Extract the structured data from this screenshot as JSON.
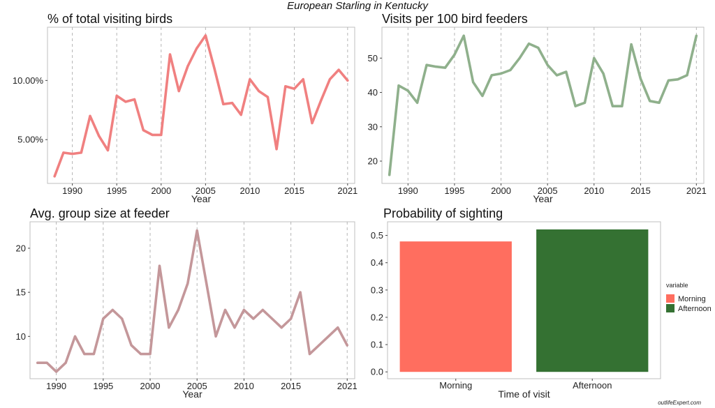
{
  "page_title": "European Starling in Kentucky",
  "watermark": "outlifeExpert.com",
  "chart_data": [
    {
      "id": "pct",
      "type": "line",
      "title": "% of total visiting birds",
      "xlabel": "Year",
      "ylabel": "",
      "color": "#f08080",
      "x": [
        1988,
        1989,
        1990,
        1991,
        1992,
        1993,
        1994,
        1995,
        1996,
        1997,
        1998,
        1999,
        2000,
        2001,
        2002,
        2003,
        2004,
        2005,
        2006,
        2007,
        2008,
        2009,
        2010,
        2011,
        2012,
        2013,
        2014,
        2015,
        2016,
        2017,
        2018,
        2019,
        2020,
        2021
      ],
      "y": [
        1.9,
        3.9,
        3.8,
        3.9,
        7.0,
        5.3,
        4.1,
        8.7,
        8.2,
        8.4,
        5.8,
        5.4,
        5.4,
        12.2,
        9.1,
        11.2,
        12.7,
        13.8,
        11.0,
        8.0,
        8.1,
        7.1,
        10.1,
        9.1,
        8.6,
        4.2,
        9.5,
        9.3,
        10.1,
        6.4,
        8.3,
        10.1,
        10.9,
        10.0
      ],
      "xlim": [
        1987.2,
        2021.8
      ],
      "ylim": [
        1.3,
        14.5
      ],
      "xticks": [
        1990,
        1995,
        2000,
        2005,
        2010,
        2015,
        2021
      ],
      "xtick_labels": [
        "1990",
        "1995",
        "2000",
        "2005",
        "2010",
        "2015",
        "2021"
      ],
      "yticks": [
        5,
        10
      ],
      "ytick_labels": [
        "5.00%",
        "10.00%"
      ],
      "grid": "vertical-dashed"
    },
    {
      "id": "visits",
      "type": "line",
      "title": "Visits per 100 bird feeders",
      "xlabel": "Year",
      "ylabel": "",
      "color": "#8fb08c",
      "x": [
        1988,
        1989,
        1990,
        1991,
        1992,
        1993,
        1994,
        1995,
        1996,
        1997,
        1998,
        1999,
        2000,
        2001,
        2002,
        2003,
        2004,
        2005,
        2006,
        2007,
        2008,
        2009,
        2010,
        2011,
        2012,
        2013,
        2014,
        2015,
        2016,
        2017,
        2018,
        2019,
        2020,
        2021
      ],
      "y": [
        16,
        42,
        40.5,
        37,
        48,
        47.5,
        47.2,
        51,
        56.5,
        43,
        39,
        45,
        45.5,
        46.5,
        50,
        54.2,
        53,
        48,
        45,
        46,
        36,
        37,
        50,
        45.5,
        36,
        36,
        54,
        44,
        37.5,
        37,
        43.5,
        43.8,
        45,
        56.5
      ],
      "xlim": [
        1987.2,
        2021.8
      ],
      "ylim": [
        13.5,
        59
      ],
      "xticks": [
        1990,
        1995,
        2000,
        2005,
        2010,
        2015,
        2021
      ],
      "xtick_labels": [
        "1990",
        "1995",
        "2000",
        "2005",
        "2010",
        "2015",
        "2021"
      ],
      "yticks": [
        20,
        30,
        40,
        50
      ],
      "ytick_labels": [
        "20",
        "30",
        "40",
        "50"
      ],
      "grid": "vertical-dashed"
    },
    {
      "id": "group",
      "type": "line",
      "title": "Avg. group size at feeder",
      "xlabel": "Year",
      "ylabel": "",
      "color": "#c4979a",
      "x": [
        1988,
        1989,
        1990,
        1991,
        1992,
        1993,
        1994,
        1995,
        1996,
        1997,
        1998,
        1999,
        2000,
        2001,
        2002,
        2003,
        2004,
        2005,
        2006,
        2007,
        2008,
        2009,
        2010,
        2011,
        2012,
        2013,
        2014,
        2015,
        2016,
        2017,
        2018,
        2019,
        2020,
        2021
      ],
      "y": [
        7,
        7,
        6,
        7,
        10,
        8,
        8,
        12,
        13,
        12,
        9,
        8,
        8,
        18,
        11,
        13,
        16,
        22,
        16,
        10,
        13,
        11,
        13,
        12,
        13,
        12,
        11,
        12,
        15,
        8,
        9,
        10,
        11,
        9
      ],
      "xlim": [
        1987.2,
        2021.8
      ],
      "ylim": [
        5.2,
        23
      ],
      "xticks": [
        1990,
        1995,
        2000,
        2005,
        2010,
        2015,
        2021
      ],
      "xtick_labels": [
        "1990",
        "1995",
        "2000",
        "2005",
        "2010",
        "2015",
        "2021"
      ],
      "yticks": [
        10,
        15,
        20
      ],
      "ytick_labels": [
        "10",
        "15",
        "20"
      ],
      "grid": "vertical-dashed"
    },
    {
      "id": "prob",
      "type": "bar",
      "title": "Probability of sighting",
      "xlabel": "Time of visit",
      "ylabel": "",
      "categories": [
        "Morning",
        "Afternoon"
      ],
      "values": [
        0.478,
        0.522
      ],
      "colors": [
        "#ff6e5f",
        "#347132"
      ],
      "ylim": [
        -0.025,
        0.55
      ],
      "yticks": [
        0,
        0.1,
        0.2,
        0.3,
        0.4,
        0.5
      ],
      "ytick_labels": [
        "0.0",
        "0.1",
        "0.2",
        "0.3",
        "0.4",
        "0.5"
      ],
      "legend": {
        "title": "variable",
        "entries": [
          "Morning",
          "Afternoon"
        ],
        "placement": "right"
      }
    }
  ]
}
